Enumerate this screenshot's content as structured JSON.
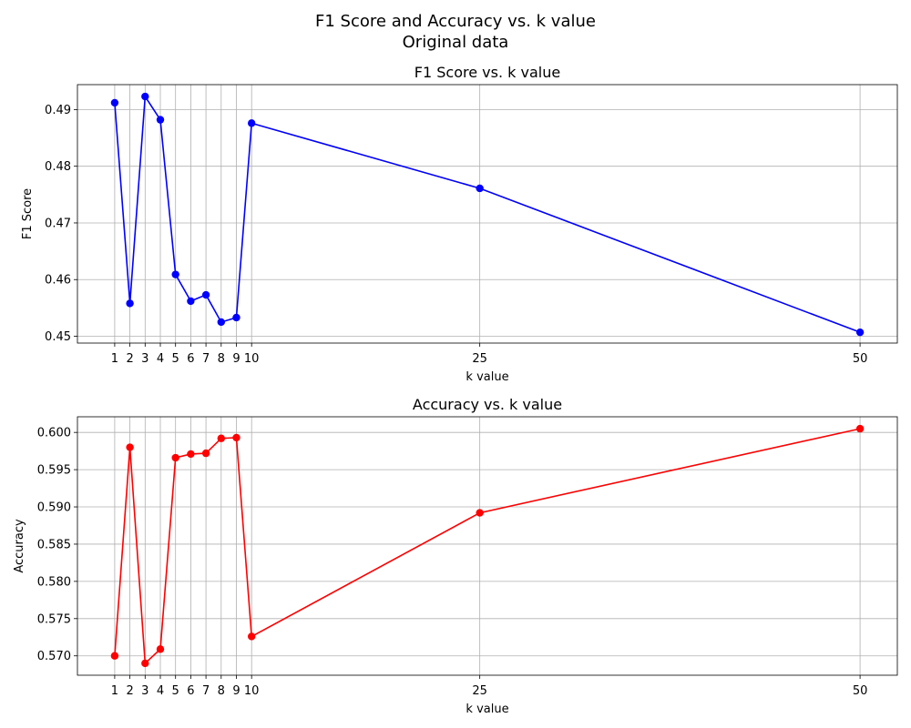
{
  "figure": {
    "title_line1": "F1 Score and Accuracy vs. k value",
    "title_line2": "Original data"
  },
  "chart_data": [
    {
      "type": "line",
      "title": "F1 Score vs. k value",
      "xlabel": "k value",
      "ylabel": "F1 Score",
      "x": [
        1,
        2,
        3,
        4,
        5,
        6,
        7,
        8,
        9,
        10,
        25,
        50
      ],
      "xticks": [
        1,
        2,
        3,
        4,
        5,
        6,
        7,
        8,
        9,
        10,
        25,
        50
      ],
      "series": [
        {
          "values": [
            0.4912,
            0.4558,
            0.4923,
            0.4882,
            0.4609,
            0.4562,
            0.4573,
            0.4525,
            0.4533,
            0.4876,
            0.4761,
            0.4507
          ],
          "color": "#0000ff"
        }
      ],
      "yticks": [
        0.45,
        0.46,
        0.47,
        0.48,
        0.49
      ],
      "ytick_labels": [
        "0.45",
        "0.46",
        "0.47",
        "0.48",
        "0.49"
      ],
      "xlim": [
        -1.45,
        52.45
      ],
      "ylim": [
        0.4488,
        0.4944
      ],
      "grid": true
    },
    {
      "type": "line",
      "title": "Accuracy vs. k value",
      "xlabel": "k value",
      "ylabel": "Accuracy",
      "x": [
        1,
        2,
        3,
        4,
        5,
        6,
        7,
        8,
        9,
        10,
        25,
        50
      ],
      "xticks": [
        1,
        2,
        3,
        4,
        5,
        6,
        7,
        8,
        9,
        10,
        25,
        50
      ],
      "series": [
        {
          "values": [
            0.57,
            0.598,
            0.569,
            0.5709,
            0.5966,
            0.5971,
            0.5972,
            0.5992,
            0.5993,
            0.5726,
            0.5892,
            0.6005
          ],
          "color": "#ff0000"
        }
      ],
      "yticks": [
        0.57,
        0.575,
        0.58,
        0.585,
        0.59,
        0.595,
        0.6
      ],
      "ytick_labels": [
        "0.570",
        "0.575",
        "0.580",
        "0.585",
        "0.590",
        "0.595",
        "0.600"
      ],
      "xlim": [
        -1.45,
        52.45
      ],
      "ylim": [
        0.5674,
        0.6021
      ],
      "grid": true
    }
  ]
}
